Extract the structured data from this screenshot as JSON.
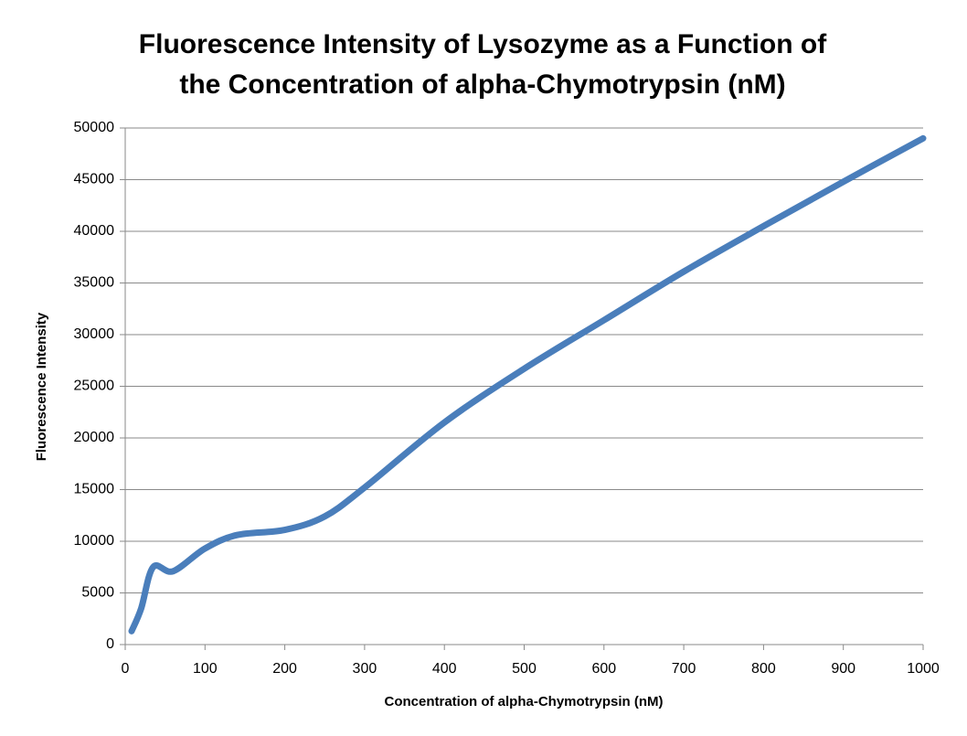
{
  "chart_data": {
    "type": "line",
    "title": [
      "Fluorescence Intensity of Lysozyme as a Function of",
      "the Concentration of alpha-Chymotrypsin (nM)"
    ],
    "x_label": "Concentration of alpha-Chymotrypsin (nM)",
    "y_label": "Fluorescence Intensity",
    "x": [
      8,
      20,
      35,
      60,
      100,
      140,
      200,
      250,
      300,
      400,
      500,
      600,
      700,
      800,
      900,
      1000
    ],
    "series": [
      {
        "name": "Fluorescence Intensity",
        "color": "#4a7ebb",
        "values": [
          1300,
          3500,
          7500,
          7100,
          9300,
          10600,
          11100,
          12400,
          15200,
          21500,
          26700,
          31400,
          36100,
          40500,
          44800,
          49000
        ]
      }
    ],
    "xlim": [
      0,
      1000
    ],
    "xticks": [
      0,
      100,
      200,
      300,
      400,
      500,
      600,
      700,
      800,
      900,
      1000
    ],
    "ylim": [
      0,
      50000
    ],
    "yticks": [
      0,
      5000,
      10000,
      15000,
      20000,
      25000,
      30000,
      35000,
      40000,
      45000,
      50000
    ],
    "grid": true,
    "smooth": true
  }
}
